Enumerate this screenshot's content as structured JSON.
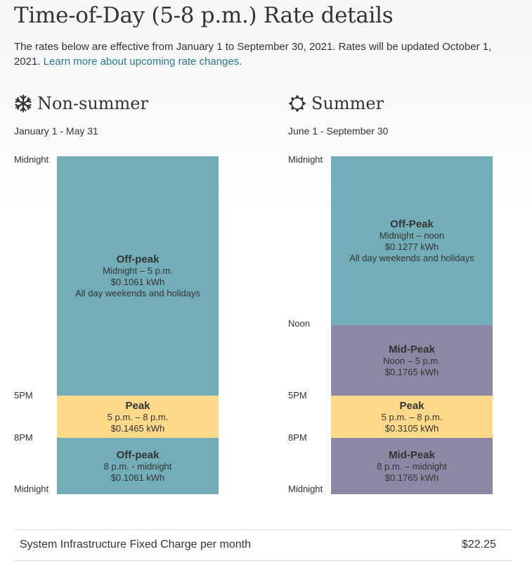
{
  "header": {
    "title": "Time-of-Day (5-8 p.m.) Rate details",
    "intro_text": "The rates below are effective from January 1 to September 30, 2021. Rates will be updated October 1, 2021. ",
    "intro_link": "Learn more about upcoming rate changes."
  },
  "non_summer": {
    "title": "Non-summer",
    "icon": "snowflake-icon",
    "range": "January 1 - May 31",
    "time_labels": {
      "start": "Midnight",
      "five": "5PM",
      "eight": "8PM",
      "end": "Midnight"
    },
    "segments": [
      {
        "name": "Off-peak",
        "hours": "Midnight – 5 p.m.",
        "rate": "$0.1061 kWh",
        "note": "All day weekends and holidays",
        "color": "#73aeb8"
      },
      {
        "name": "Peak",
        "hours": "5 p.m. – 8 p.m.",
        "rate": "$0.1465 kWh",
        "color": "#fed98a"
      },
      {
        "name": "Off-peak",
        "hours": "8 p.m. - midnight",
        "rate": "$0.1061 kWh",
        "color": "#73aeb8"
      }
    ]
  },
  "summer": {
    "title": "Summer",
    "icon": "sun-icon",
    "range": "June 1 - September 30",
    "time_labels": {
      "start": "Midnight",
      "noon": "Noon",
      "five": "5PM",
      "eight": "8PM",
      "end": "Midnight"
    },
    "segments": [
      {
        "name": "Off-Peak",
        "hours": "Midnight – noon",
        "rate": "$0.1277 kWh",
        "note": "All day weekends and holidays",
        "color": "#73aeb8"
      },
      {
        "name": "Mid-Peak",
        "hours": "Noon – 5 p.m.",
        "rate": "$0.1765 kWh",
        "color": "#8d86a5"
      },
      {
        "name": "Peak",
        "hours": "5 p.m. – 8 p.m.",
        "rate": "$0.3105 kWh",
        "color": "#fed98a"
      },
      {
        "name": "Mid-Peak",
        "hours": "8 p.m. – midnight",
        "rate": "$0.1765 kWh",
        "color": "#8d86a5"
      }
    ]
  },
  "fixed_charge": {
    "label": "System Infrastructure Fixed Charge per month",
    "value": "$22.25"
  }
}
